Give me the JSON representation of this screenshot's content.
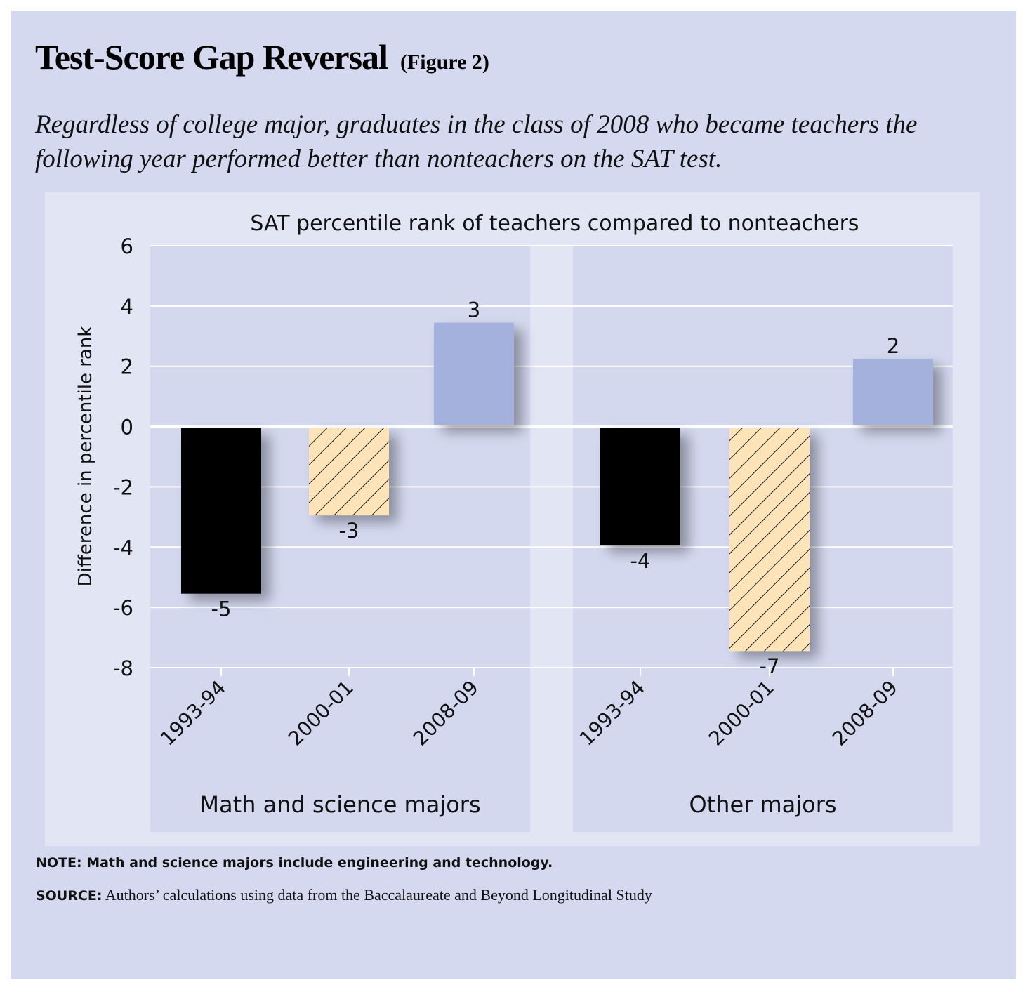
{
  "header": {
    "title": "Test-Score Gap Reversal",
    "figure_label": "(Figure 2)",
    "subtitle": "Regardless of college major, graduates in the class of 2008 who became teachers the following year performed better than nonteachers on the SAT test."
  },
  "chart_data": {
    "type": "bar",
    "title": "SAT percentile rank of teachers compared to nonteachers",
    "ylabel": "Difference in percentile rank",
    "ylim": [
      -8,
      6
    ],
    "yticks": [
      6,
      4,
      2,
      0,
      -2,
      -4,
      -6,
      -8
    ],
    "grid": true,
    "colors": {
      "1993-94": "#000000",
      "2000-01": "#fde3b8",
      "2008-09": "#a3b1dc"
    },
    "hatched": [
      "2000-01"
    ],
    "groups": [
      {
        "name": "Math and science majors",
        "categories": [
          "1993-94",
          "2000-01",
          "2008-09"
        ],
        "values": [
          -5.5,
          -2.9,
          3.4
        ],
        "labels": [
          "-5",
          "-3",
          "3"
        ]
      },
      {
        "name": "Other majors",
        "categories": [
          "1993-94",
          "2000-01",
          "2008-09"
        ],
        "values": [
          -3.9,
          -7.4,
          2.2
        ],
        "labels": [
          "-4",
          "-7",
          "2"
        ]
      }
    ]
  },
  "footer": {
    "note": "NOTE: Math and science majors include engineering and technology.",
    "source_label": "SOURCE:",
    "source_text": " Authors’ calculations using data from the Baccalaureate and Beyond Longitudinal Study"
  }
}
